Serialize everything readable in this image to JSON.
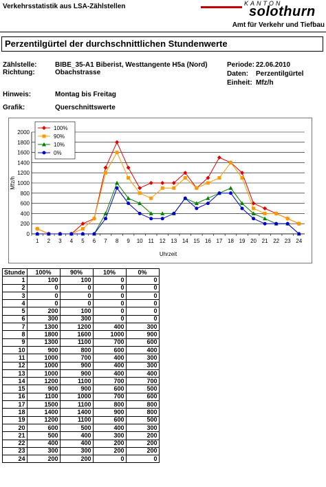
{
  "header": {
    "doc_title": "Verkehrsstatistik aus LSA-Zählstellen",
    "logo_kanton": "KANTON",
    "logo_name": "solothurn",
    "department": "Amt für Verkehr und Tiefbau"
  },
  "section_title": "Perzentilgürtel der durchschnittlichen Stundenwerte",
  "meta": {
    "zaehlstelle_label": "Zählstelle:",
    "zaehlstelle_value": "BIBE_35-A1 Biberist, Westtangente H5a (Nord)",
    "richtung_label": "Richtung:",
    "richtung_value": "Obachstrasse",
    "periode_label": "Periode:",
    "periode_value": "22.06.2010",
    "daten_label": "Daten:",
    "daten_value": "Perzentilgürtel",
    "einheit_label": "Einheit:",
    "einheit_value": "Mfz/h",
    "hinweis_label": "Hinweis:",
    "hinweis_value": "Montag bis Freitag",
    "grafik_label": "Grafik:",
    "grafik_value": "Querschnittswerte"
  },
  "chart_data": {
    "type": "line",
    "xlabel": "Uhrzeit",
    "ylabel": "Mfz/h",
    "ylim": [
      0,
      2000
    ],
    "yticks": [
      0,
      200,
      400,
      600,
      800,
      1000,
      1200,
      1400,
      1600,
      1800,
      2000
    ],
    "x": [
      1,
      2,
      3,
      4,
      5,
      6,
      7,
      8,
      9,
      10,
      11,
      12,
      13,
      14,
      15,
      16,
      17,
      18,
      19,
      20,
      21,
      22,
      23,
      24
    ],
    "grid": "horizontal",
    "legend_position": "top-left",
    "series": [
      {
        "name": "100%",
        "color": "#e00000",
        "marker": "diamond",
        "values": [
          100,
          0,
          0,
          0,
          200,
          300,
          1300,
          1800,
          1300,
          900,
          1000,
          1000,
          1000,
          1200,
          900,
          1100,
          1500,
          1400,
          1200,
          600,
          500,
          400,
          300,
          200
        ]
      },
      {
        "name": "90%",
        "color": "#ff9900",
        "marker": "square",
        "values": [
          100,
          0,
          0,
          0,
          100,
          300,
          1200,
          1600,
          1100,
          800,
          700,
          900,
          900,
          1100,
          900,
          1000,
          1100,
          1400,
          1100,
          500,
          400,
          400,
          300,
          200
        ]
      },
      {
        "name": "10%",
        "color": "#008000",
        "marker": "triangle",
        "values": [
          0,
          0,
          0,
          0,
          0,
          0,
          400,
          1000,
          700,
          600,
          400,
          400,
          400,
          700,
          600,
          700,
          800,
          900,
          600,
          400,
          300,
          200,
          200,
          0
        ]
      },
      {
        "name": "0%",
        "color": "#0000cc",
        "marker": "circle",
        "values": [
          0,
          0,
          0,
          0,
          0,
          0,
          300,
          900,
          600,
          400,
          300,
          300,
          400,
          700,
          500,
          600,
          800,
          800,
          500,
          300,
          200,
          200,
          200,
          0
        ]
      }
    ]
  },
  "table": {
    "headers": [
      "Stunde",
      "100%",
      "90%",
      "10%",
      "0%"
    ],
    "rows": [
      [
        "1",
        "100",
        "100",
        "0",
        "0"
      ],
      [
        "2",
        "0",
        "0",
        "0",
        "0"
      ],
      [
        "3",
        "0",
        "0",
        "0",
        "0"
      ],
      [
        "4",
        "0",
        "0",
        "0",
        "0"
      ],
      [
        "5",
        "200",
        "100",
        "0",
        "0"
      ],
      [
        "6",
        "300",
        "300",
        "0",
        "0"
      ],
      [
        "7",
        "1300",
        "1200",
        "400",
        "300"
      ],
      [
        "8",
        "1800",
        "1600",
        "1000",
        "900"
      ],
      [
        "9",
        "1300",
        "1100",
        "700",
        "600"
      ],
      [
        "10",
        "900",
        "800",
        "600",
        "400"
      ],
      [
        "11",
        "1000",
        "700",
        "400",
        "300"
      ],
      [
        "12",
        "1000",
        "900",
        "400",
        "300"
      ],
      [
        "13",
        "1000",
        "900",
        "400",
        "400"
      ],
      [
        "14",
        "1200",
        "1100",
        "700",
        "700"
      ],
      [
        "15",
        "900",
        "900",
        "600",
        "500"
      ],
      [
        "16",
        "1100",
        "1000",
        "700",
        "600"
      ],
      [
        "17",
        "1500",
        "1100",
        "800",
        "800"
      ],
      [
        "18",
        "1400",
        "1400",
        "900",
        "800"
      ],
      [
        "19",
        "1200",
        "1100",
        "600",
        "500"
      ],
      [
        "20",
        "600",
        "500",
        "400",
        "300"
      ],
      [
        "21",
        "500",
        "400",
        "300",
        "200"
      ],
      [
        "22",
        "400",
        "400",
        "200",
        "200"
      ],
      [
        "23",
        "300",
        "300",
        "200",
        "200"
      ],
      [
        "24",
        "200",
        "200",
        "0",
        "0"
      ]
    ]
  }
}
